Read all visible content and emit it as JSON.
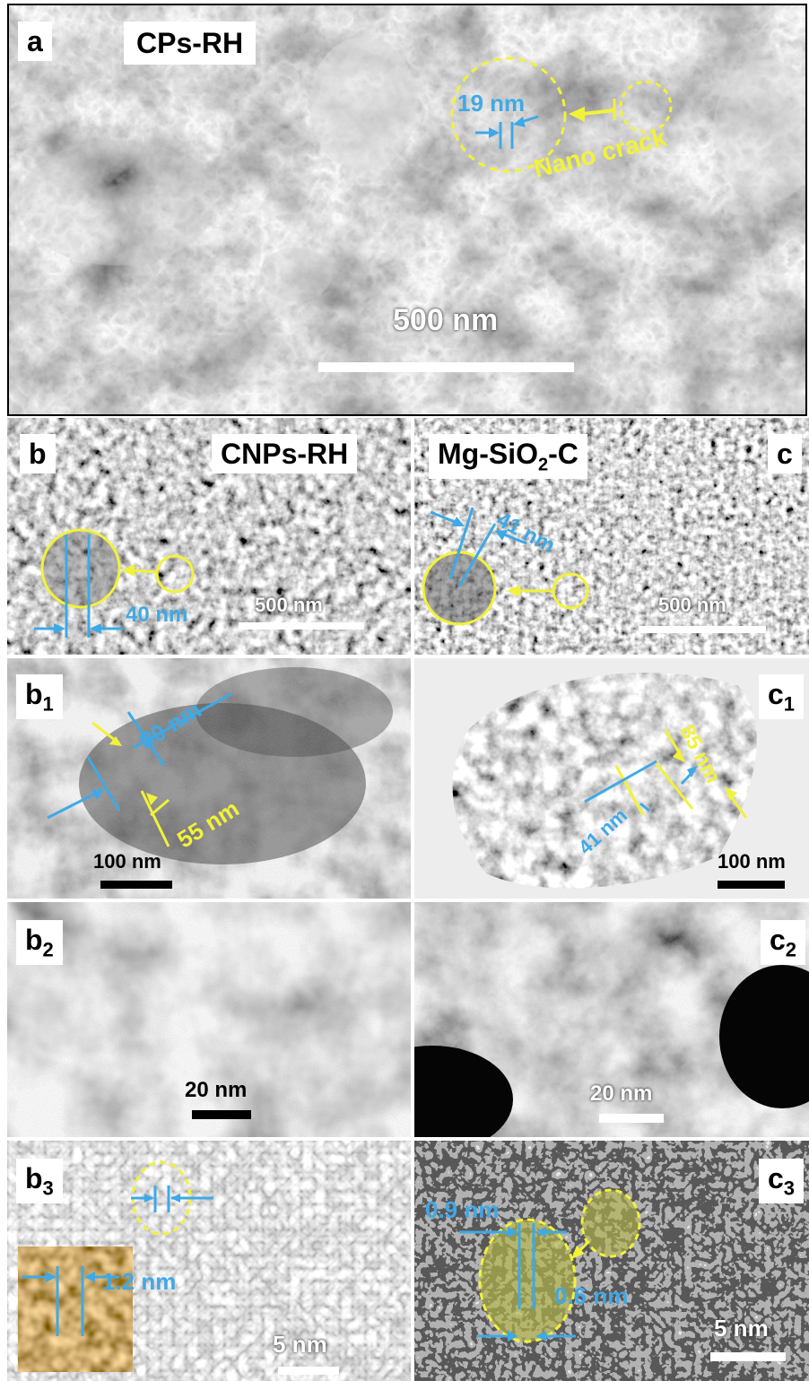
{
  "panels": {
    "a": {
      "label": "a",
      "name": "CPs-RH",
      "scale": "500 nm",
      "dim": "19 nm",
      "note": "Nano crack"
    },
    "b": {
      "label": "b",
      "name": "CNPs-RH",
      "scale": "500 nm",
      "dim": "40 nm"
    },
    "c": {
      "label": "c",
      "name_prefix": "Mg-SiO",
      "name_sub": "2",
      "name_suffix": "-C",
      "scale": "500 nm",
      "dim": "41 nm"
    },
    "b1": {
      "label": "b",
      "sub": "1",
      "scale": "100 nm",
      "dim_blue": "80 nm",
      "dim_yellow": "55 nm"
    },
    "c1": {
      "label": "c",
      "sub": "1",
      "scale": "100 nm",
      "dim_yellow": "85 nm",
      "dim_blue": "41 nm"
    },
    "b2": {
      "label": "b",
      "sub": "2",
      "scale": "20 nm"
    },
    "c2": {
      "label": "c",
      "sub": "2",
      "scale": "20 nm"
    },
    "b3": {
      "label": "b",
      "sub": "3",
      "scale": "5 nm",
      "dim": "1.2 nm"
    },
    "c3": {
      "label": "c",
      "sub": "3",
      "scale": "5 nm",
      "dim1": "0.9 nm",
      "dim2": "0.6 nm"
    }
  },
  "colors": {
    "annotation_blue": "#3fa9e6",
    "annotation_yellow": "#f2f23a"
  }
}
